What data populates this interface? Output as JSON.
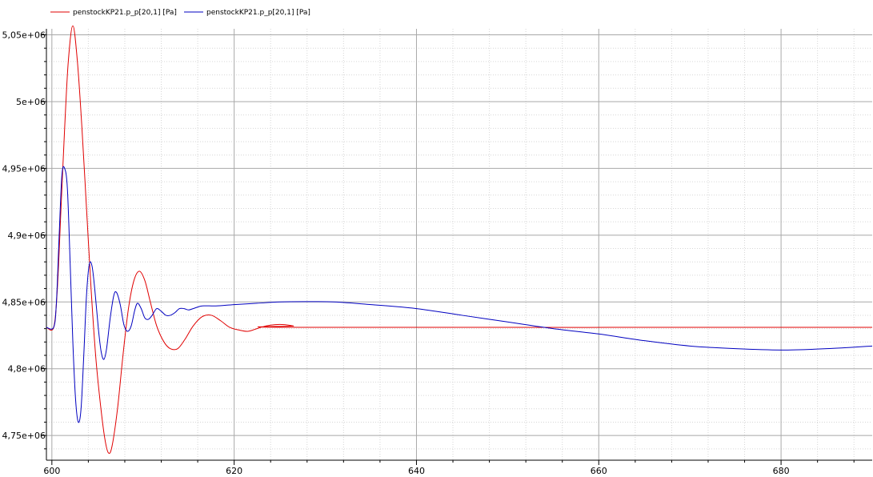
{
  "chart_data": {
    "type": "line",
    "xlim": [
      599.4,
      690
    ],
    "ylim": [
      4.7315,
      5.0545
    ],
    "x_ticks": [
      600,
      620,
      640,
      660,
      680
    ],
    "x_tick_labels": [
      "600",
      "620",
      "640",
      "660",
      "680"
    ],
    "y_ticks": [
      4.75,
      4.8,
      4.85,
      4.9,
      4.95,
      5.0,
      5.05
    ],
    "y_tick_labels": [
      "4,75e+06",
      "4,8e+06",
      "4,85e+06",
      "4,9e+06",
      "4,95e+06",
      "5e+06",
      "5,05e+06"
    ],
    "grid": true,
    "legend_position": "top-left",
    "series": [
      {
        "name": "penstockKP21.p_p[20,1] [Pa]",
        "color": "#e00000",
        "points": [
          [
            599.4,
            4.831
          ],
          [
            600.2,
            4.831
          ],
          [
            600.6,
            4.86
          ],
          [
            601.0,
            4.92
          ],
          [
            601.4,
            4.98
          ],
          [
            601.8,
            5.03
          ],
          [
            602.3,
            5.057
          ],
          [
            602.8,
            5.03
          ],
          [
            603.3,
            4.98
          ],
          [
            603.8,
            4.92
          ],
          [
            604.3,
            4.86
          ],
          [
            604.8,
            4.81
          ],
          [
            605.3,
            4.775
          ],
          [
            605.8,
            4.748
          ],
          [
            606.2,
            4.737
          ],
          [
            606.6,
            4.742
          ],
          [
            607.2,
            4.77
          ],
          [
            607.8,
            4.81
          ],
          [
            608.4,
            4.845
          ],
          [
            609.0,
            4.866
          ],
          [
            609.6,
            4.873
          ],
          [
            610.2,
            4.866
          ],
          [
            610.8,
            4.85
          ],
          [
            611.5,
            4.832
          ],
          [
            612.3,
            4.82
          ],
          [
            613.0,
            4.815
          ],
          [
            613.8,
            4.815
          ],
          [
            614.6,
            4.822
          ],
          [
            615.5,
            4.832
          ],
          [
            616.5,
            4.839
          ],
          [
            617.5,
            4.84
          ],
          [
            618.5,
            4.836
          ],
          [
            619.5,
            4.831
          ],
          [
            620.5,
            4.829
          ],
          [
            621.5,
            4.828
          ],
          [
            622.5,
            4.83
          ],
          [
            623.5,
            4.832
          ],
          [
            624.5,
            4.833
          ],
          [
            625.5,
            4.833
          ],
          [
            626.5,
            4.832
          ],
          [
            627.5,
            4.831
          ],
          [
            690.0,
            4.831
          ]
        ]
      },
      {
        "name": "penstockKP21.p_p[20,1] [Pa]",
        "color": "#0000c0",
        "points": [
          [
            599.4,
            4.831
          ],
          [
            600.2,
            4.831
          ],
          [
            600.5,
            4.85
          ],
          [
            600.8,
            4.9
          ],
          [
            601.1,
            4.945
          ],
          [
            601.4,
            4.95
          ],
          [
            601.7,
            4.935
          ],
          [
            602.0,
            4.88
          ],
          [
            602.3,
            4.82
          ],
          [
            602.6,
            4.777
          ],
          [
            602.9,
            4.76
          ],
          [
            603.2,
            4.77
          ],
          [
            603.5,
            4.81
          ],
          [
            603.8,
            4.855
          ],
          [
            604.1,
            4.878
          ],
          [
            604.4,
            4.877
          ],
          [
            604.7,
            4.86
          ],
          [
            605.1,
            4.83
          ],
          [
            605.4,
            4.813
          ],
          [
            605.7,
            4.807
          ],
          [
            606.0,
            4.815
          ],
          [
            606.4,
            4.838
          ],
          [
            606.8,
            4.855
          ],
          [
            607.1,
            4.857
          ],
          [
            607.5,
            4.848
          ],
          [
            607.9,
            4.833
          ],
          [
            608.3,
            4.828
          ],
          [
            608.7,
            4.832
          ],
          [
            609.1,
            4.844
          ],
          [
            609.4,
            4.849
          ],
          [
            609.8,
            4.845
          ],
          [
            610.2,
            4.838
          ],
          [
            610.6,
            4.837
          ],
          [
            611.0,
            4.84
          ],
          [
            611.5,
            4.845
          ],
          [
            612.0,
            4.843
          ],
          [
            612.5,
            4.84
          ],
          [
            613.0,
            4.84
          ],
          [
            613.5,
            4.842
          ],
          [
            614.0,
            4.845
          ],
          [
            614.5,
            4.845
          ],
          [
            615.0,
            4.844
          ],
          [
            615.5,
            4.845
          ],
          [
            616.5,
            4.847
          ],
          [
            618.0,
            4.847
          ],
          [
            620.0,
            4.848
          ],
          [
            622.5,
            4.849
          ],
          [
            625.0,
            4.85
          ],
          [
            628.0,
            4.8502
          ],
          [
            631.0,
            4.85
          ],
          [
            635.0,
            4.848
          ],
          [
            640.0,
            4.845
          ],
          [
            645.0,
            4.84
          ],
          [
            650.0,
            4.835
          ],
          [
            655.0,
            4.83
          ],
          [
            660.0,
            4.826
          ],
          [
            665.0,
            4.821
          ],
          [
            670.0,
            4.817
          ],
          [
            675.0,
            4.815
          ],
          [
            680.0,
            4.814
          ],
          [
            685.0,
            4.815
          ],
          [
            690.0,
            4.817
          ]
        ]
      }
    ]
  }
}
